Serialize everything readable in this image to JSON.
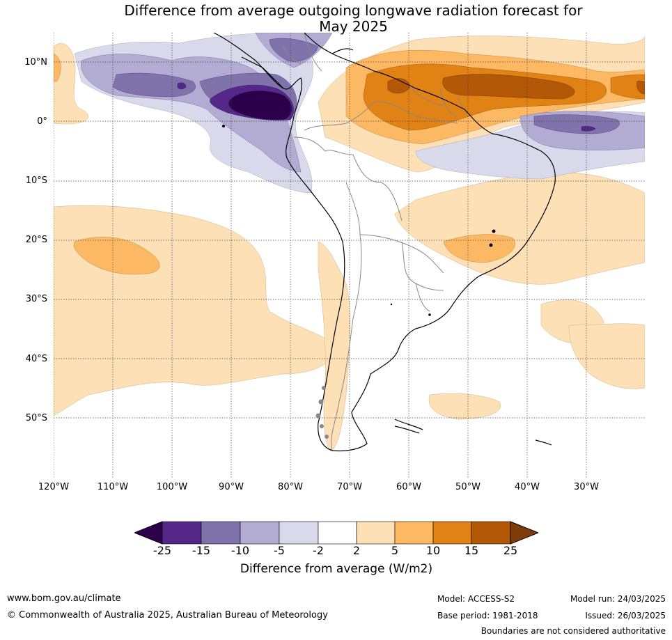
{
  "title_line1": "Difference from average outgoing longwave radiation forecast for",
  "title_line2": "May 2025",
  "lat_labels": [
    "10°N",
    "0°",
    "10°S",
    "20°S",
    "30°S",
    "40°S",
    "50°S"
  ],
  "lon_labels": [
    "120°W",
    "110°W",
    "100°W",
    "90°W",
    "80°W",
    "70°W",
    "60°W",
    "50°W",
    "40°W",
    "30°W"
  ],
  "colorbar": {
    "ticks": [
      "-25",
      "-15",
      "-10",
      "-5",
      "-2",
      "2",
      "5",
      "10",
      "15",
      "25"
    ],
    "label": "Difference from average (W/m2)",
    "colors": [
      "#2d004b",
      "#542788",
      "#8073ac",
      "#b2abd2",
      "#d8daeb",
      "#ffffff",
      "#fee0b6",
      "#fdb863",
      "#e08214",
      "#b35806",
      "#7f3b08"
    ]
  },
  "footer": {
    "website": "www.bom.gov.au/climate",
    "copyright": "© Commonwealth of Australia 2025, Australian Bureau of Meteorology",
    "model": "Model: ACCESS-S2",
    "base_period": "Base period: 1981-2018",
    "model_run": "Model run: 24/03/2025",
    "issued": "Issued: 26/03/2025",
    "disclaimer": "Boundaries are not considered authoritative"
  }
}
